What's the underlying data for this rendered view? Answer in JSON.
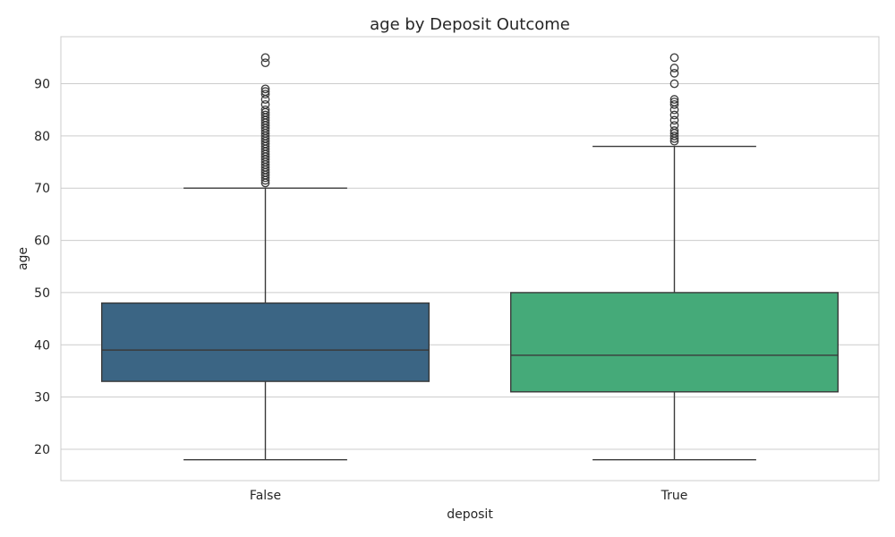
{
  "chart_data": {
    "type": "box",
    "title": "age by Deposit Outcome",
    "xlabel": "deposit",
    "ylabel": "age",
    "ylim": [
      14,
      99
    ],
    "yticks": [
      20,
      30,
      40,
      50,
      60,
      70,
      80,
      90
    ],
    "grid": true,
    "categories": [
      "False",
      "True"
    ],
    "colors": [
      "#3b6584",
      "#45aa79"
    ],
    "boxes": [
      {
        "category": "False",
        "whisker_low": 18,
        "q1": 33,
        "median": 39,
        "q3": 48,
        "whisker_high": 70,
        "outliers": [
          71,
          71.5,
          72,
          72.5,
          73,
          73.5,
          74,
          74.5,
          75,
          75.5,
          76,
          76.5,
          77,
          77.5,
          78,
          78.5,
          79,
          79.5,
          80,
          80.5,
          81,
          81.5,
          82,
          82.5,
          83,
          83.5,
          84,
          84.5,
          85,
          86,
          87,
          88,
          88.5,
          89,
          94,
          95
        ]
      },
      {
        "category": "True",
        "whisker_low": 18,
        "q1": 31,
        "median": 38,
        "q3": 50,
        "whisker_high": 78,
        "outliers": [
          79,
          79.5,
          80,
          80.5,
          81,
          82,
          83,
          84,
          85,
          86,
          86.5,
          87,
          90,
          92,
          93,
          95
        ]
      }
    ]
  }
}
